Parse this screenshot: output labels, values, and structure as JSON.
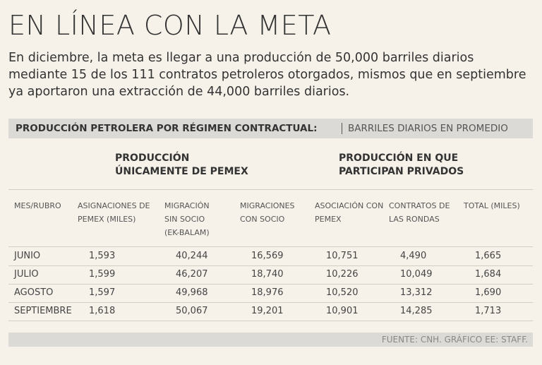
{
  "header": {
    "title": "EN LÍNEA CON LA META",
    "intro": [
      "En diciembre, la meta es llegar a una producción de 50,000 barriles diarios",
      "mediante 15 de los 111 contratos petroleros otorgados, mismos que en septiembre",
      "ya aportaron una extracción de 44,000 barriles diarios."
    ]
  },
  "table": {
    "caption": "PRODUCCIÓN PETROLERA POR RÉGIMEN CONTRACTUAL:",
    "unit": "BARRILES DIARIOS EN PROMEDIO",
    "groups": [
      [
        "PRODUCCIÓN",
        "ÚNICAMENTE DE PEMEX"
      ],
      [
        "PRODUCCIÓN EN QUE",
        "PARTICIPAN PRIVADOS"
      ]
    ],
    "columns": [
      [
        "MES/RUBRO"
      ],
      [
        "ASIGNACIONES DE",
        "PEMEX (MILES)"
      ],
      [
        "MIGRACIÓN",
        "SIN SOCIO",
        "(EK-BALAM)"
      ],
      [
        "MIGRACIONES",
        "CON SOCIO"
      ],
      [
        "ASOCIACIÓN CON",
        "PEMEX"
      ],
      [
        "CONTRATOS DE",
        "LAS RONDAS"
      ],
      [
        "TOTAL (MILES)"
      ]
    ],
    "rows": [
      [
        "JUNIO",
        "1,593",
        "40,244",
        "16,569",
        "10,751",
        "4,490",
        "1,665"
      ],
      [
        "JULIO",
        "1,599",
        "46,207",
        "18,740",
        "10,226",
        "10,049",
        "1,684"
      ],
      [
        "AGOSTO",
        "1,597",
        "49,968",
        "18,976",
        "10,520",
        "13,312",
        "1,690"
      ],
      [
        "SEPTIEMBRE",
        "1,618",
        "50,067",
        "19,201",
        "10,901",
        "14,285",
        "1,713"
      ]
    ]
  },
  "footer": {
    "source": "FUENTE: CNH. GRÁFICO EE: STAFF."
  }
}
